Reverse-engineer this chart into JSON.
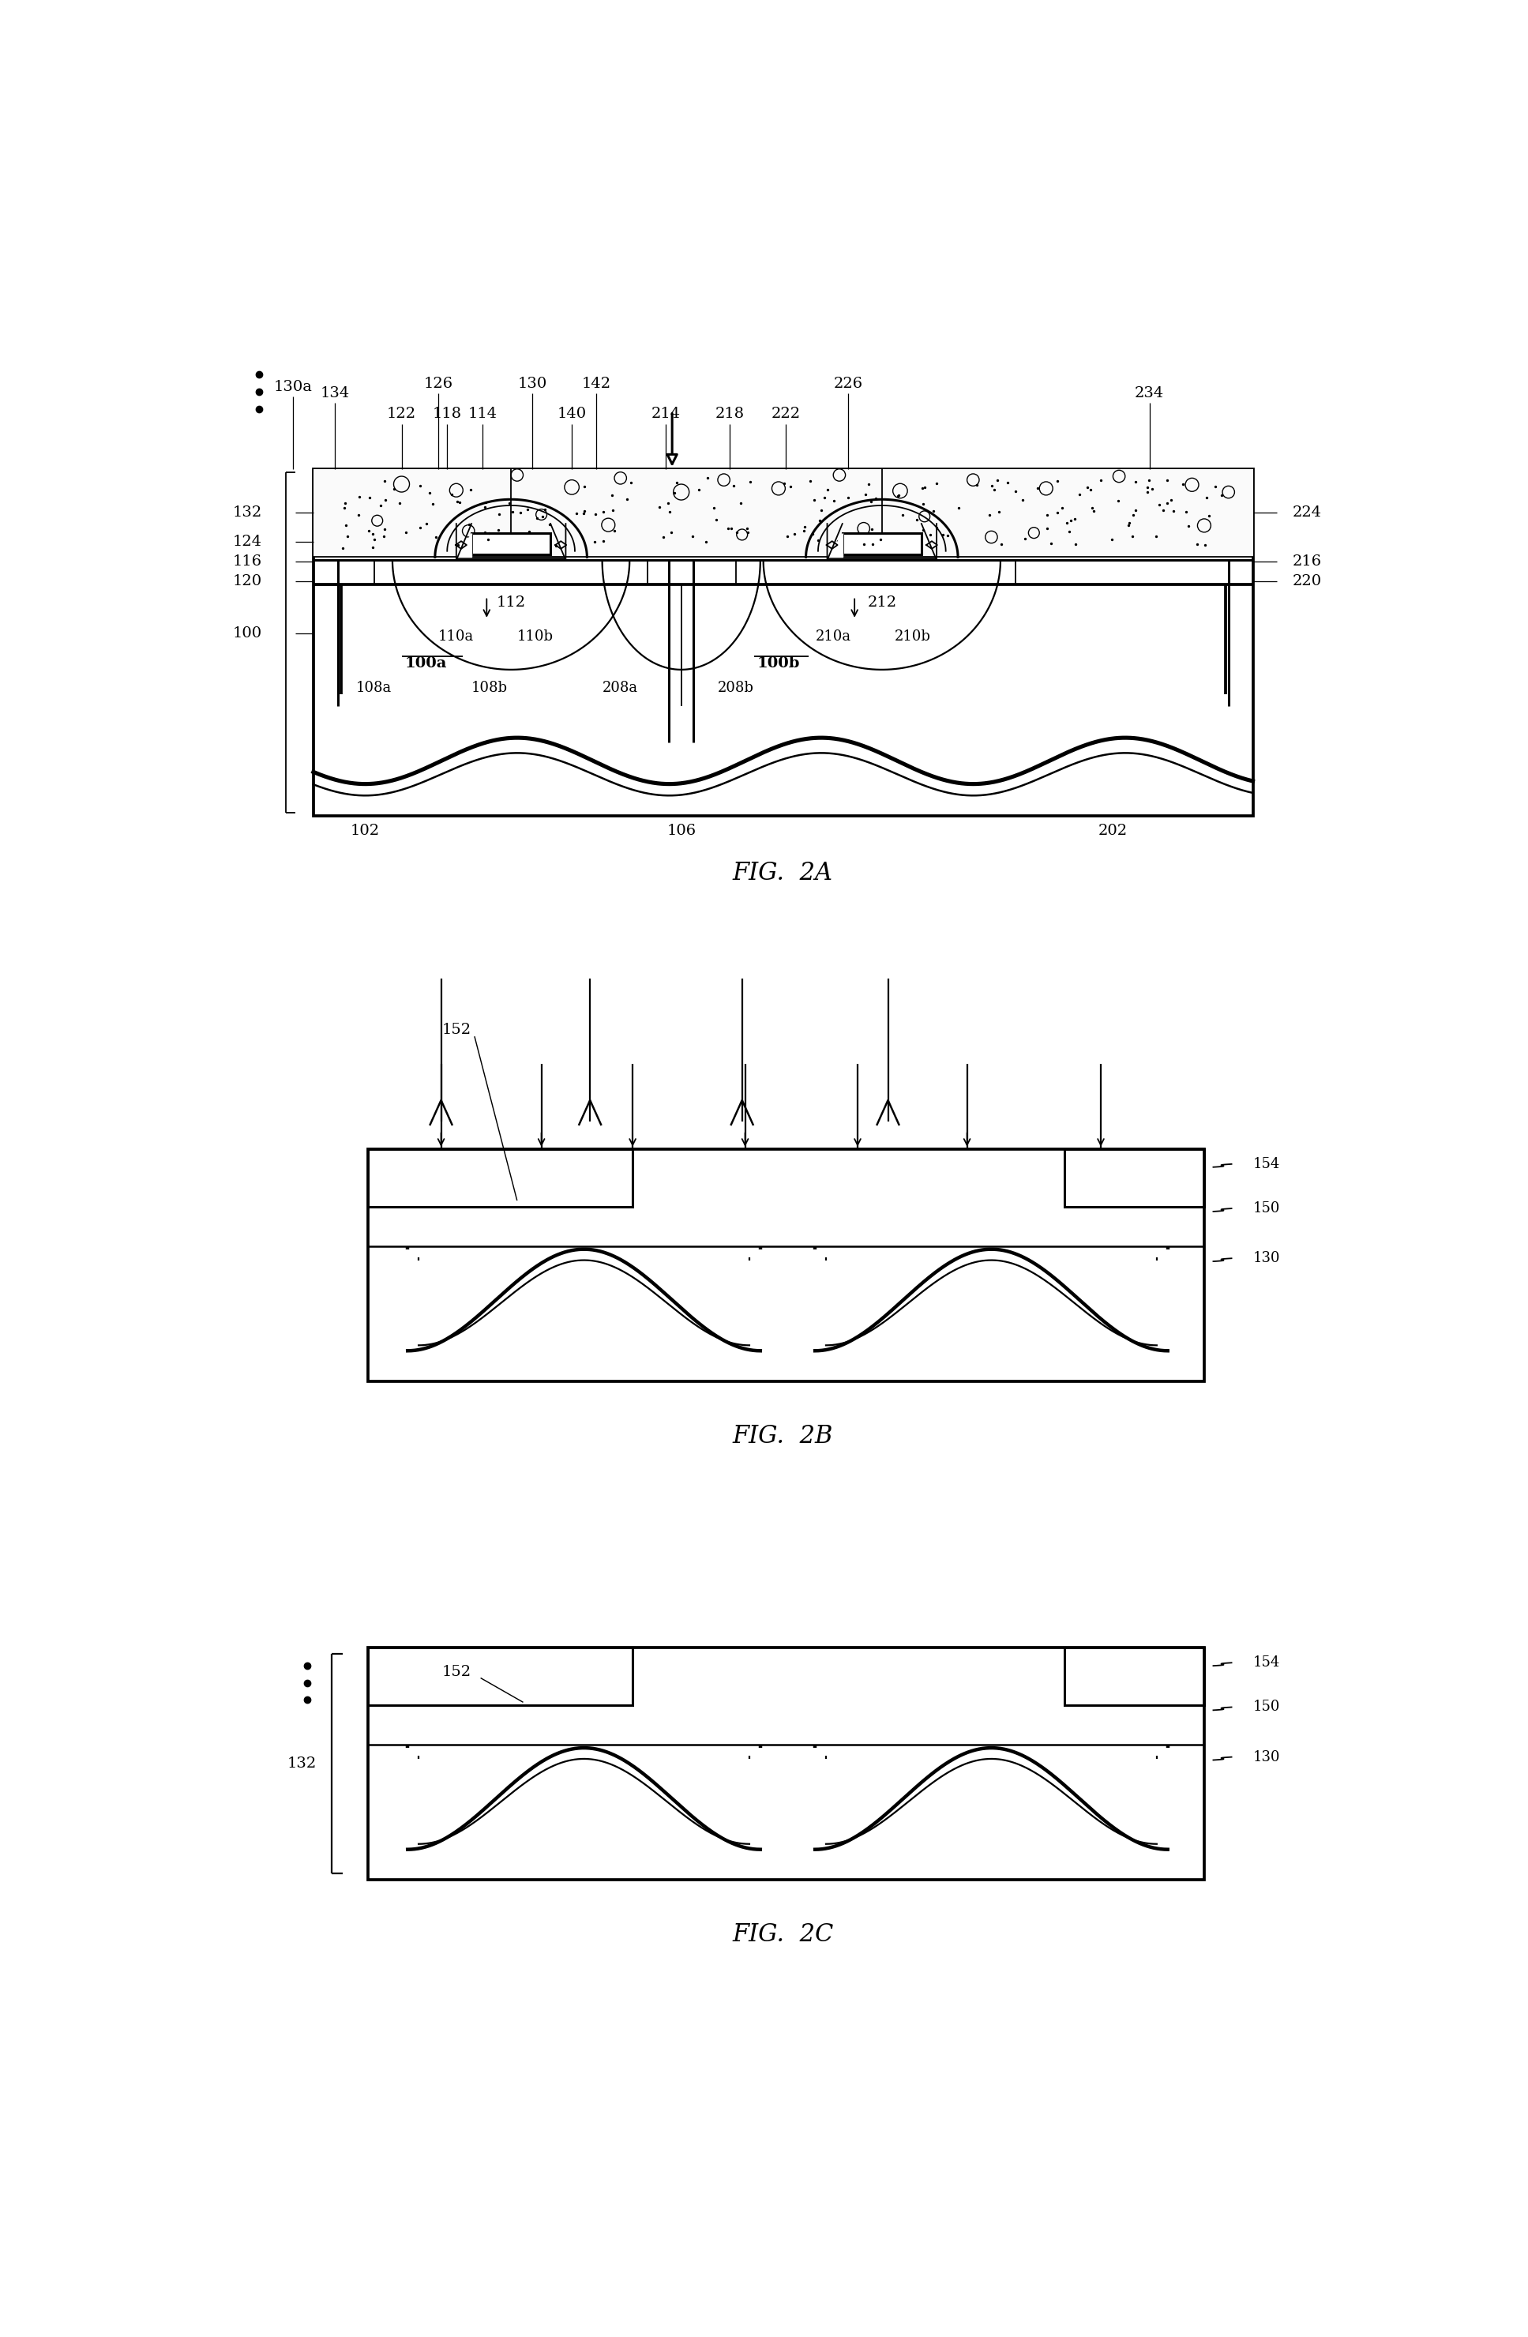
{
  "fig_width": 19.35,
  "fig_height": 29.59,
  "bg_color": "#ffffff",
  "lc": "#000000",
  "lw": 2.2,
  "tlw": 1.3,
  "fig2a_label": "FIG.  2A",
  "fig2b_label": "FIG.  2B",
  "fig2c_label": "FIG.  2C"
}
